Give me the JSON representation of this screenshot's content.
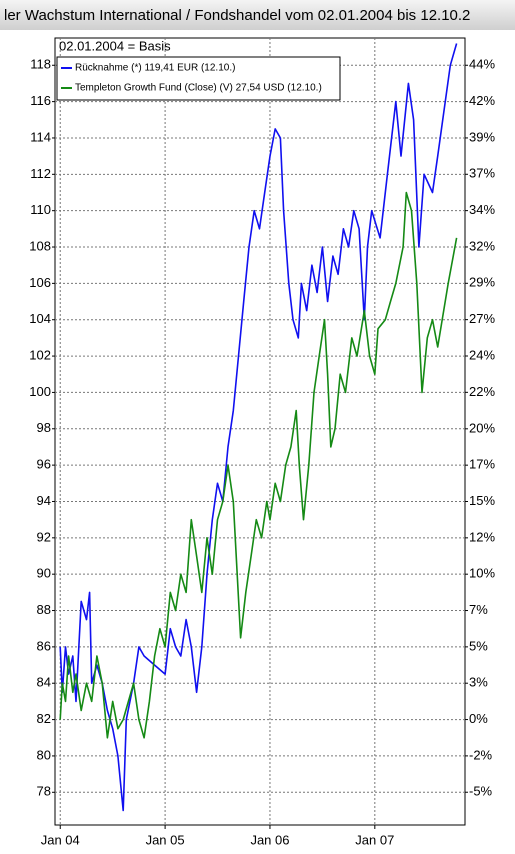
{
  "chart_data": {
    "type": "line",
    "title": "ler Wachstum International / Fondshandel  vom 02.01.2004 bis 12.10.2",
    "subtitle": "02.01.2004 = Basis",
    "xlim": [
      2003.95,
      2007.86
    ],
    "xticks": [
      {
        "value": 2004,
        "label": "Jan 04"
      },
      {
        "value": 2005,
        "label": "Jan 05"
      },
      {
        "value": 2006,
        "label": "Jan 06"
      },
      {
        "value": 2007,
        "label": "Jan 07"
      }
    ],
    "ylim": [
      76.2,
      119.5
    ],
    "yticks": [
      78,
      80,
      82,
      84,
      86,
      88,
      90,
      92,
      94,
      96,
      98,
      100,
      102,
      104,
      106,
      108,
      110,
      112,
      114,
      116,
      118
    ],
    "y2lim": [
      -7.02,
      45.82
    ],
    "y2ticks": [
      {
        "value": -4.82,
        "label": "-5%"
      },
      {
        "value": -2.38,
        "label": "-2%"
      },
      {
        "value": 0.06,
        "label": "0%"
      },
      {
        "value": 2.5,
        "label": "3%"
      },
      {
        "value": 4.94,
        "label": "5%"
      },
      {
        "value": 7.38,
        "label": "7%"
      },
      {
        "value": 9.82,
        "label": "10%"
      },
      {
        "value": 12.26,
        "label": "12%"
      },
      {
        "value": 14.7,
        "label": "15%"
      },
      {
        "value": 17.14,
        "label": "17%"
      },
      {
        "value": 19.58,
        "label": "20%"
      },
      {
        "value": 22.03,
        "label": "22%"
      },
      {
        "value": 24.47,
        "label": "24%"
      },
      {
        "value": 26.91,
        "label": "27%"
      },
      {
        "value": 29.35,
        "label": "29%"
      },
      {
        "value": 31.79,
        "label": "32%"
      },
      {
        "value": 34.23,
        "label": "34%"
      },
      {
        "value": 36.67,
        "label": "37%"
      },
      {
        "value": 39.11,
        "label": "39%"
      },
      {
        "value": 41.55,
        "label": "42%"
      },
      {
        "value": 43.99,
        "label": "44%"
      }
    ],
    "grid": true,
    "legend": "top-left",
    "series": [
      {
        "name": "Rücknahme (*) 119,41 EUR (12.10.)",
        "color": "#1010f0",
        "x": [
          2004.0,
          2004.02,
          2004.05,
          2004.08,
          2004.12,
          2004.15,
          2004.2,
          2004.25,
          2004.28,
          2004.3,
          2004.35,
          2004.4,
          2004.45,
          2004.5,
          2004.55,
          2004.6,
          2004.63,
          2004.7,
          2004.75,
          2004.8,
          2004.9,
          2005.0,
          2005.05,
          2005.1,
          2005.15,
          2005.2,
          2005.25,
          2005.3,
          2005.35,
          2005.4,
          2005.45,
          2005.5,
          2005.55,
          2005.6,
          2005.65,
          2005.7,
          2005.75,
          2005.8,
          2005.85,
          2005.9,
          2005.95,
          2006.0,
          2006.05,
          2006.1,
          2006.13,
          2006.18,
          2006.22,
          2006.27,
          2006.3,
          2006.35,
          2006.4,
          2006.45,
          2006.5,
          2006.55,
          2006.6,
          2006.65,
          2006.7,
          2006.75,
          2006.8,
          2006.85,
          2006.9,
          2006.93,
          2006.97,
          2007.05,
          2007.12,
          2007.2,
          2007.25,
          2007.32,
          2007.37,
          2007.42,
          2007.47,
          2007.55,
          2007.6,
          2007.72,
          2007.78
        ],
        "values": [
          86,
          83.5,
          86,
          84.5,
          85.5,
          83,
          88.5,
          87.5,
          89,
          84,
          85,
          84,
          82.5,
          81.5,
          80,
          77,
          82,
          84,
          86,
          85.5,
          85,
          84.5,
          87,
          86,
          85.5,
          87.5,
          86,
          83.5,
          86,
          90,
          93,
          95,
          94,
          97,
          99,
          102,
          105,
          108,
          110,
          109,
          111,
          113,
          114.5,
          114,
          110,
          106,
          104,
          103,
          106,
          104.5,
          107,
          105.5,
          108,
          105,
          107.5,
          106.5,
          109,
          108,
          110,
          109,
          104,
          108,
          110,
          108.5,
          112,
          116,
          113,
          117,
          115,
          108,
          112,
          111,
          113,
          118,
          119.2
        ]
      },
      {
        "name": "Templeton Growth Fund (Close) (V) 27,54 USD (12.10.)",
        "color": "#158a15",
        "x": [
          2004.0,
          2004.02,
          2004.05,
          2004.08,
          2004.12,
          2004.15,
          2004.2,
          2004.25,
          2004.3,
          2004.35,
          2004.4,
          2004.45,
          2004.5,
          2004.55,
          2004.6,
          2004.65,
          2004.7,
          2004.75,
          2004.8,
          2004.85,
          2004.9,
          2004.95,
          2005.0,
          2005.05,
          2005.1,
          2005.15,
          2005.2,
          2005.25,
          2005.3,
          2005.35,
          2005.4,
          2005.45,
          2005.5,
          2005.55,
          2005.6,
          2005.65,
          2005.72,
          2005.77,
          2005.82,
          2005.87,
          2005.92,
          2005.97,
          2006.0,
          2006.05,
          2006.1,
          2006.15,
          2006.2,
          2006.25,
          2006.28,
          2006.32,
          2006.37,
          2006.42,
          2006.47,
          2006.52,
          2006.55,
          2006.58,
          2006.62,
          2006.67,
          2006.72,
          2006.78,
          2006.83,
          2006.9,
          2006.95,
          2007.0,
          2007.03,
          2007.1,
          2007.15,
          2007.2,
          2007.27,
          2007.3,
          2007.35,
          2007.4,
          2007.45,
          2007.5,
          2007.55,
          2007.6,
          2007.7,
          2007.78
        ],
        "values": [
          82,
          84,
          83,
          85.5,
          83.5,
          84.5,
          82.5,
          84,
          83,
          85.5,
          84,
          81,
          83,
          81.5,
          82,
          83,
          84,
          82,
          81,
          83,
          85.5,
          87,
          86,
          89,
          88,
          90,
          89,
          93,
          91,
          89,
          92,
          90,
          93,
          94,
          96,
          94,
          86.5,
          89,
          91,
          93,
          92,
          94,
          93,
          95,
          94,
          96,
          97,
          99,
          96,
          93,
          96,
          100,
          102,
          104,
          101,
          97,
          98,
          101,
          100,
          103,
          102,
          104.5,
          102,
          101,
          103.5,
          104,
          105,
          106,
          108,
          111,
          110,
          106,
          100,
          103,
          104,
          102.5,
          106,
          108.5
        ]
      }
    ]
  }
}
